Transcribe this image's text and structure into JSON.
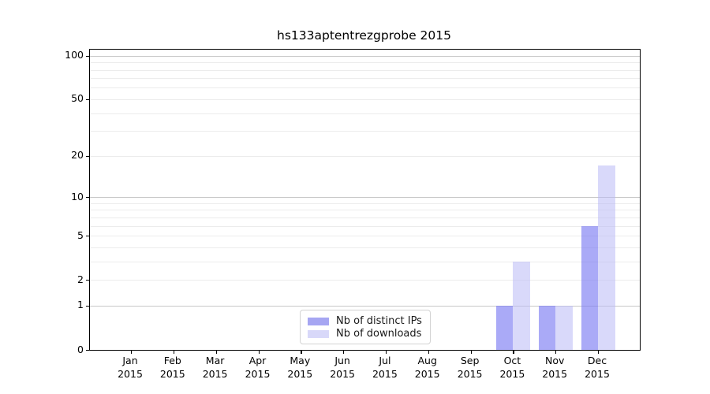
{
  "chart_data": {
    "type": "bar",
    "title": "hs133aptentrezgprobe 2015",
    "year": "2015",
    "categories": [
      "Jan",
      "Feb",
      "Mar",
      "Apr",
      "May",
      "Jun",
      "Jul",
      "Aug",
      "Sep",
      "Oct",
      "Nov",
      "Dec"
    ],
    "series": [
      {
        "name": "Nb of distinct IPs",
        "color": "#a6a6f2",
        "fill": "rgba(125,125,243,0.65)",
        "values": [
          0,
          0,
          0,
          0,
          0,
          0,
          0,
          0,
          0,
          1,
          1,
          6
        ]
      },
      {
        "name": "Nb of downloads",
        "color": "#d8d8f9",
        "fill": "rgba(186,186,246,0.55)",
        "values": [
          0,
          0,
          0,
          0,
          0,
          0,
          0,
          0,
          0,
          3,
          1,
          17
        ]
      }
    ],
    "y_axis": {
      "scale": "log1p",
      "max": 110,
      "tick_labels": [
        0,
        1,
        2,
        5,
        10,
        20,
        50,
        100
      ],
      "major_gridlines": [
        1,
        10,
        100
      ],
      "minor_gridlines": [
        2,
        3,
        4,
        5,
        6,
        7,
        8,
        9,
        20,
        30,
        40,
        50,
        60,
        70,
        80,
        90
      ]
    },
    "legend": {
      "position": "inside-bottom-center"
    },
    "grid": "horizontal-only",
    "background": "#ffffff"
  }
}
